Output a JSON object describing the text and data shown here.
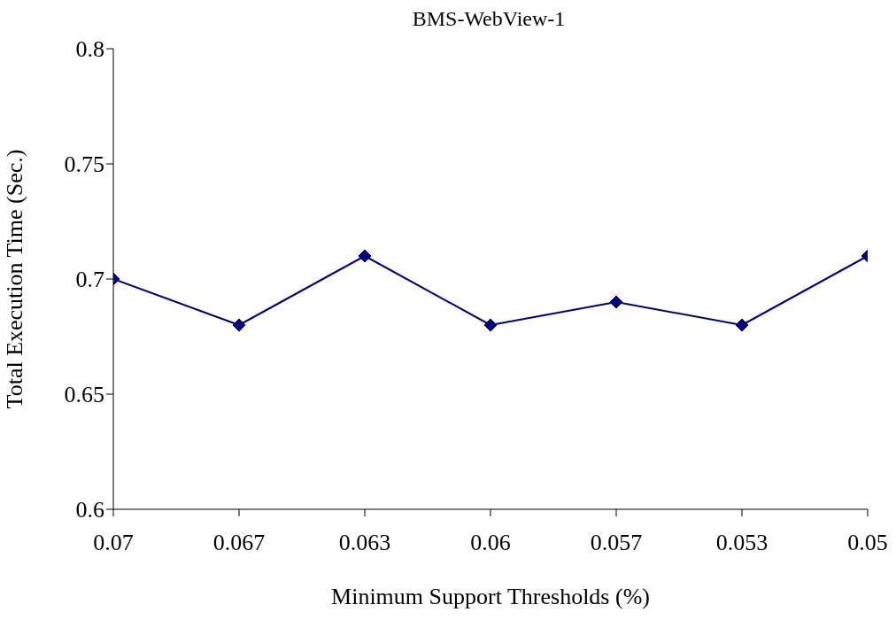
{
  "chart_data": {
    "type": "line",
    "title": "BMS-WebView-1",
    "xlabel": "Minimum Support Thresholds (%)",
    "ylabel": "Total Execution Time (Sec.)",
    "categories": [
      "0.07",
      "0.067",
      "0.063",
      "0.06",
      "0.057",
      "0.053",
      "0.05"
    ],
    "series": [
      {
        "color": "#000080",
        "values": [
          0.7,
          0.68,
          0.71,
          0.68,
          0.69,
          0.68,
          0.71
        ]
      }
    ],
    "ylim": [
      0.6,
      0.8
    ],
    "yticks": [
      0.6,
      0.65,
      0.7,
      0.75,
      0.8
    ],
    "grid": false,
    "legend": false,
    "marker": "diamond",
    "line_style": "solid"
  }
}
